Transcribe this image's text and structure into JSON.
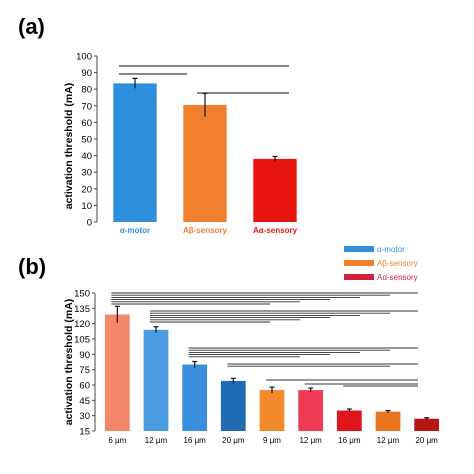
{
  "chart_data": [
    {
      "panel_label": "(a)",
      "type": "bar",
      "categories": [
        "α-motor",
        "Aβ-sensory",
        "Aα-sensory"
      ],
      "category_colors": [
        "#2e8fdd",
        "#f07f2e",
        "#e8140f"
      ],
      "values": [
        83.5,
        70.5,
        38
      ],
      "errors": [
        3,
        7,
        1.5
      ],
      "xlabel": "",
      "ylabel": "activation threshold (mA)",
      "ylim": [
        0,
        100
      ],
      "yticks": [
        0,
        10,
        20,
        30,
        40,
        50,
        60,
        70,
        80,
        90,
        100
      ],
      "grid": false,
      "significance_brackets": [
        [
          0,
          2
        ],
        [
          0,
          1
        ],
        [
          1,
          2
        ]
      ]
    },
    {
      "panel_label": "(b)",
      "type": "bar",
      "categories": [
        "6 μm",
        "12 μm",
        "16 μm",
        "20 μm",
        "9 μm",
        "12 μm",
        "16 μm",
        "12 μm",
        "20 μm"
      ],
      "category_groups": [
        "motor",
        "motor",
        "motor",
        "motor",
        "beta",
        "beta",
        "alpha_hi",
        "alpha_lo",
        "alpha_lo"
      ],
      "category_colors": [
        "#f4876a",
        "#4a9be0",
        "#3a8fdc",
        "#1f6bb4",
        "#f08a2a",
        "#ee3a55",
        "#e0141a",
        "#e8741f",
        "#b51515"
      ],
      "values": [
        129,
        114,
        80,
        64,
        55,
        55,
        35,
        34,
        27
      ],
      "errors": [
        8,
        3,
        3,
        2.5,
        3,
        2,
        1.5,
        1,
        1
      ],
      "xlabel": "",
      "ylabel": "activation threshold (mA)",
      "ylim": [
        15,
        150
      ],
      "yticks": [
        15,
        30,
        45,
        60,
        75,
        90,
        105,
        120,
        135,
        150
      ],
      "grid": false,
      "legend": {
        "placement": "top-right",
        "entries": [
          {
            "name": "α-motor",
            "color": "#2e8fdd"
          },
          {
            "name": "Aβ-sensory",
            "color": "#f07f2e"
          },
          {
            "name": "Aα-sensory",
            "color": "#d81c3c"
          }
        ]
      },
      "significance_lines": [
        [
          0,
          9
        ],
        [
          0,
          8
        ],
        [
          0,
          7
        ],
        [
          0,
          6
        ],
        [
          0,
          5
        ],
        [
          0,
          4
        ],
        [
          1,
          9
        ],
        [
          1,
          8
        ],
        [
          1,
          7
        ],
        [
          1,
          6
        ],
        [
          1,
          5
        ],
        [
          1,
          4
        ],
        [
          2,
          9
        ],
        [
          2,
          8
        ],
        [
          2,
          7
        ],
        [
          2,
          6
        ],
        [
          2,
          5
        ],
        [
          3,
          9
        ],
        [
          3,
          8
        ],
        [
          4,
          9
        ],
        [
          5,
          9
        ],
        [
          6,
          9
        ]
      ]
    }
  ]
}
